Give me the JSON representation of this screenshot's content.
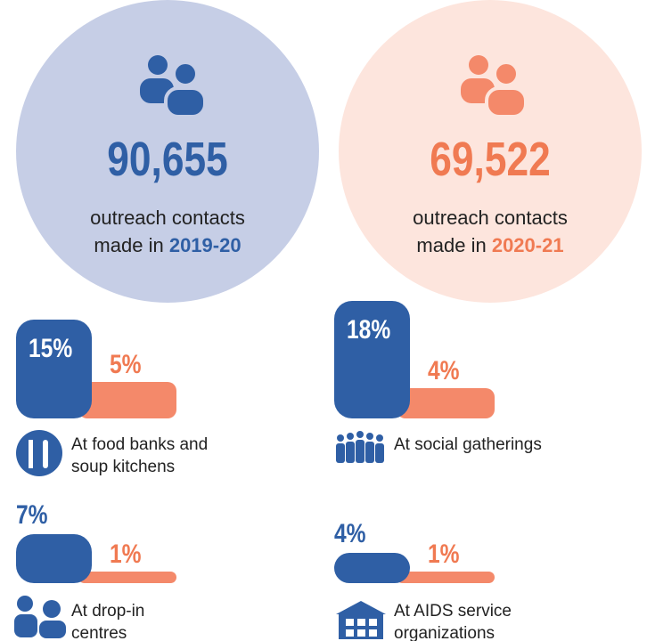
{
  "stats": [
    {
      "number": "90,655",
      "line1": "outreach contacts",
      "line2": "made in",
      "year": "2019-20"
    },
    {
      "number": "69,522",
      "line1": "outreach contacts",
      "line2": "made in",
      "year": "2020-21"
    }
  ],
  "locations": [
    {
      "lines": [
        "At food banks and",
        "soup kitchens"
      ],
      "values": [
        15,
        5
      ],
      "value_labels": [
        "15%",
        "5%"
      ]
    },
    {
      "lines": [
        "At social gatherings"
      ],
      "values": [
        18,
        4
      ],
      "value_labels": [
        "18%",
        "4%"
      ]
    },
    {
      "lines": [
        "At drop-in",
        "centres"
      ],
      "values": [
        7,
        1
      ],
      "value_labels": [
        "7%",
        "1%"
      ]
    },
    {
      "lines": [
        "At AIDS service",
        "organizations"
      ],
      "values": [
        4,
        1
      ],
      "value_labels": [
        "4%",
        "1%"
      ]
    }
  ]
}
